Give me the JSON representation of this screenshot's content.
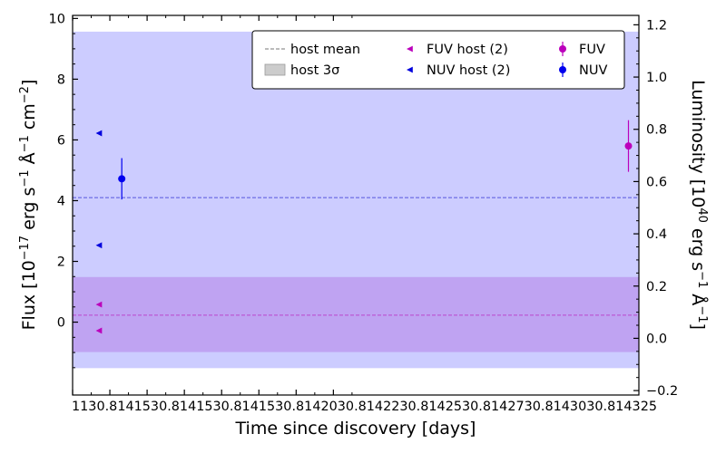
{
  "chart_data": {
    "type": "scatter",
    "xlabel": "Time since discovery [days]",
    "ylabel": "Flux [10^-17 erg s^-1 Å^-1 cm^-2]",
    "y2label": "Luminosity [10^40 erg s^-1 Å^-1]",
    "xlim": [
      1130.81415,
      1130.81453
    ],
    "ylim": [
      -2.4,
      10.1
    ],
    "y2lim": [
      -0.217,
      1.236
    ],
    "x_ticks": [
      {
        "value": 1130.81415,
        "label": "1130.814150"
      },
      {
        "value": 1130.814175,
        "label": "1130.814175"
      },
      {
        "value": 1130.8142,
        "label": "1130.814200"
      },
      {
        "value": 1130.814225,
        "label": "1130.814225"
      },
      {
        "value": 1130.81425,
        "label": "1130.814250"
      },
      {
        "value": 1130.814275,
        "label": "1130.814275"
      },
      {
        "value": 1130.8143,
        "label": "1130.814300"
      },
      {
        "value": 1130.814325,
        "label": "1130.814325"
      }
    ],
    "x_tick_text": "1130.8141530.8141530.8141530.8142030.8142230.8142530.8142730.8143030.814325",
    "y_ticks": [
      "0",
      "2",
      "4",
      "6",
      "8",
      "10"
    ],
    "y2_ticks": [
      "−0.2",
      "0.0",
      "0.2",
      "0.4",
      "0.6",
      "0.8",
      "1.0",
      "1.2"
    ],
    "bands": [
      {
        "name": "NUV host 3σ",
        "ymin": -1.5,
        "ymax": 9.55,
        "color": "#ccccff"
      },
      {
        "name": "FUV host 3σ",
        "ymin": -0.97,
        "ymax": 1.47,
        "color": "#bfa3f2"
      }
    ],
    "host_mean_lines": [
      {
        "name": "NUV host mean",
        "y": 4.1,
        "color": "#5555dd"
      },
      {
        "name": "FUV host mean",
        "y": 0.23,
        "color": "#bb44cc"
      }
    ],
    "series": [
      {
        "name": "FUV host (2)",
        "marker": "triangle-left",
        "color": "#bb00bb",
        "points": [
          {
            "x": 1130.814168,
            "y": 0.58
          },
          {
            "x": 1130.814168,
            "y": -0.28
          }
        ]
      },
      {
        "name": "NUV host (2)",
        "marker": "triangle-left",
        "color": "#0000dd",
        "points": [
          {
            "x": 1130.814168,
            "y": 6.22
          },
          {
            "x": 1130.814168,
            "y": 2.53
          }
        ]
      },
      {
        "name": "FUV",
        "marker": "circle",
        "color": "#bb00bb",
        "points": [
          {
            "x": 1130.814523,
            "y": 5.8,
            "yerr": 0.85
          }
        ]
      },
      {
        "name": "NUV",
        "marker": "circle",
        "color": "#0000ee",
        "points": [
          {
            "x": 1130.814183,
            "y": 4.72,
            "yerr": 0.68
          }
        ]
      }
    ],
    "legend": {
      "placement": "top-right",
      "entries": [
        {
          "label": "host mean",
          "kind": "dashed-line",
          "color": "#777777"
        },
        {
          "label": "FUV host (2)",
          "kind": "triangle-left",
          "color": "#bb00bb"
        },
        {
          "label": "FUV",
          "kind": "errorbar-circle",
          "color": "#bb00bb"
        },
        {
          "label": "host 3σ",
          "kind": "patch",
          "color": "#cccccc"
        },
        {
          "label": "NUV host (2)",
          "kind": "triangle-left",
          "color": "#0000dd"
        },
        {
          "label": "NUV",
          "kind": "errorbar-circle",
          "color": "#0000ee"
        }
      ]
    },
    "grid": false
  }
}
